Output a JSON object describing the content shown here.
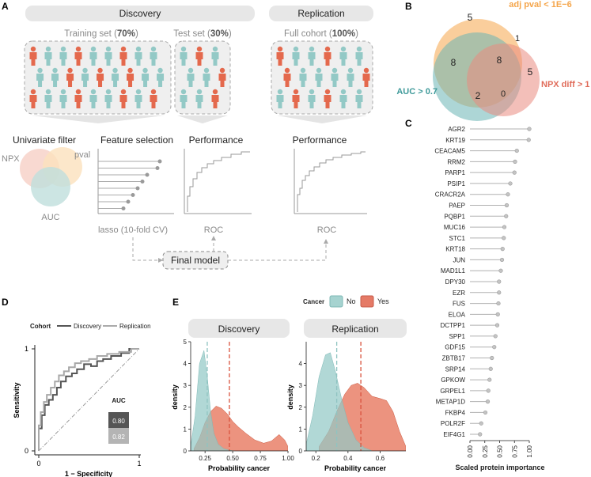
{
  "panels": {
    "a": "A",
    "b": "B",
    "c": "C",
    "d": "D",
    "e": "E"
  },
  "colors": {
    "orange": "#f5a54a",
    "teal": "#69b5b5",
    "red": "#e06c5a",
    "person_teal": "#93c9c6",
    "person_red": "#e4694d",
    "gray": "#9a9a9a",
    "header_fill": "#e7e7e7"
  },
  "panel_a": {
    "discovery_label": "Discovery",
    "replication_label": "Replication",
    "training_pre": "Training set (",
    "training_pct": "70%",
    "training_post": ")",
    "test_pre": "Test set (",
    "test_pct": "30%",
    "test_post": ")",
    "full_pre": "Full cohort (",
    "full_pct": "100%",
    "full_post": ")",
    "univariate_filter": "Univariate filter",
    "feature_selection": "Feature selection",
    "performance_1": "Performance",
    "performance_2": "Performance",
    "npx": "NPX",
    "pval": "pval",
    "auc": "AUC",
    "lasso": "lasso (10-fold CV)",
    "roc_1": "ROC",
    "roc_2": "ROC",
    "final_model": "Final model"
  },
  "panel_b": {
    "sets": [
      "adj pval < 1E−6",
      "AUC > 0.7",
      "NPX diff > 1"
    ],
    "counts": {
      "pval_only": "5",
      "pval_npx": "1",
      "pval_auc": "8",
      "all_three": "8",
      "npx_only": "5",
      "auc_npx": "0",
      "auc_only": "2"
    }
  },
  "panel_c": {
    "chart_data": {
      "type": "lollipop",
      "categories": [
        "AGR2",
        "KRT19",
        "CEACAM5",
        "RRM2",
        "PARP1",
        "PSIP1",
        "CRACR2A",
        "PAEP",
        "PQBP1",
        "MUC16",
        "STC1",
        "KRT18",
        "JUN",
        "MAD1L1",
        "DPY30",
        "EZR",
        "FUS",
        "ELOA",
        "DCTPP1",
        "SPP1",
        "GDF15",
        "ZBTB17",
        "SRP14",
        "GPKOW",
        "GRPEL1",
        "METAP1D",
        "FKBP4",
        "POLR2F",
        "EIF4G1"
      ],
      "values": [
        1.0,
        0.99,
        0.79,
        0.76,
        0.75,
        0.68,
        0.64,
        0.62,
        0.61,
        0.58,
        0.57,
        0.55,
        0.54,
        0.52,
        0.49,
        0.49,
        0.48,
        0.47,
        0.46,
        0.43,
        0.41,
        0.37,
        0.35,
        0.33,
        0.31,
        0.3,
        0.26,
        0.19,
        0.17
      ],
      "xlabel": "Scaled protein importance",
      "xticks": [
        "0.00",
        "0.25",
        "0.50",
        "0.75",
        "1.00"
      ],
      "xlim": [
        0,
        1
      ]
    }
  },
  "panel_d": {
    "legend_title": "Cohort",
    "series_names": [
      "Discovery",
      "Replication"
    ],
    "ylabel": "Sensitivity",
    "xlabel": "1 − Specificity",
    "tick_0": "0",
    "tick_1": "1",
    "auc_title": "AUC",
    "auc_values": [
      "0.80",
      "0.82"
    ],
    "chart_data": {
      "type": "line",
      "xlim": [
        0,
        1
      ],
      "ylim": [
        0,
        1
      ],
      "series": [
        {
          "name": "Discovery",
          "x": [
            0,
            0.0,
            0.03,
            0.03,
            0.06,
            0.06,
            0.1,
            0.1,
            0.14,
            0.14,
            0.18,
            0.18,
            0.22,
            0.22,
            0.27,
            0.27,
            0.33,
            0.33,
            0.38,
            0.38,
            0.45,
            0.45,
            0.52,
            0.52,
            0.58,
            0.58,
            0.64,
            0.64,
            0.72,
            0.72,
            0.82,
            0.82,
            0.9,
            0.9,
            1.0
          ],
          "y": [
            0,
            0.22,
            0.22,
            0.35,
            0.35,
            0.45,
            0.45,
            0.5,
            0.5,
            0.55,
            0.55,
            0.62,
            0.62,
            0.68,
            0.68,
            0.73,
            0.73,
            0.76,
            0.76,
            0.8,
            0.8,
            0.85,
            0.85,
            0.83,
            0.83,
            0.88,
            0.88,
            0.9,
            0.9,
            0.93,
            0.93,
            0.96,
            0.96,
            1.0,
            1.0
          ]
        },
        {
          "name": "Replication",
          "x": [
            0,
            0.0,
            0.02,
            0.02,
            0.05,
            0.05,
            0.08,
            0.08,
            0.12,
            0.12,
            0.16,
            0.16,
            0.2,
            0.2,
            0.25,
            0.25,
            0.3,
            0.3,
            0.36,
            0.36,
            0.42,
            0.42,
            0.5,
            0.5,
            0.58,
            0.58,
            0.68,
            0.68,
            0.8,
            0.8,
            0.92,
            0.92,
            1.0
          ],
          "y": [
            0,
            0.25,
            0.25,
            0.38,
            0.38,
            0.48,
            0.48,
            0.55,
            0.55,
            0.62,
            0.62,
            0.68,
            0.68,
            0.74,
            0.74,
            0.78,
            0.78,
            0.82,
            0.82,
            0.86,
            0.86,
            0.88,
            0.88,
            0.9,
            0.9,
            0.93,
            0.93,
            0.95,
            0.95,
            0.97,
            0.97,
            1.0,
            1.0
          ]
        }
      ]
    }
  },
  "panel_e": {
    "legend_title": "Cancer",
    "legend_no": "No",
    "legend_yes": "Yes",
    "discovery_title": "Discovery",
    "replication_title": "Replication",
    "ylabel": "density",
    "xlabel": "Probability cancer",
    "chart_data": [
      {
        "type": "area",
        "name": "Discovery",
        "xlim": [
          0.12,
          1.0
        ],
        "ylim": [
          0,
          5
        ],
        "xticks": [
          0.25,
          0.5,
          0.75,
          1.0
        ],
        "xticklabels": [
          "0.25",
          "0.50",
          "0.75",
          "1.00"
        ],
        "yticks": [
          0,
          1,
          2,
          3,
          4,
          5
        ],
        "yticklabels": [
          "0",
          "1",
          "2",
          "3",
          "4",
          "5"
        ],
        "series": [
          {
            "name": "No",
            "x": [
              0.12,
              0.16,
              0.2,
              0.24,
              0.27,
              0.3,
              0.33,
              0.37,
              0.42,
              0.47,
              0.52
            ],
            "y": [
              0.2,
              1.6,
              4.0,
              4.6,
              3.4,
              1.8,
              0.8,
              0.3,
              0.1,
              0.03,
              0.0
            ]
          },
          {
            "name": "Yes",
            "x": [
              0.15,
              0.2,
              0.25,
              0.3,
              0.35,
              0.4,
              0.45,
              0.5,
              0.55,
              0.62,
              0.7,
              0.78,
              0.85,
              0.92,
              0.97,
              1.0
            ],
            "y": [
              0.1,
              0.6,
              1.3,
              1.8,
              2.05,
              1.95,
              1.7,
              1.35,
              1.1,
              0.8,
              0.5,
              0.35,
              0.45,
              0.75,
              0.5,
              0.2
            ]
          }
        ],
        "vlines": [
          0.27,
          0.47
        ]
      },
      {
        "type": "area",
        "name": "Replication",
        "xlim": [
          0.14,
          0.76
        ],
        "ylim": [
          0,
          5
        ],
        "xticks": [
          0.2,
          0.4,
          0.6
        ],
        "xticklabels": [
          "0.2",
          "0.4",
          "0.6"
        ],
        "yticks": [
          0,
          1,
          2,
          3,
          4
        ],
        "yticklabels": [
          "0",
          "1",
          "2",
          "3",
          "4"
        ],
        "series": [
          {
            "name": "No",
            "x": [
              0.14,
              0.18,
              0.22,
              0.26,
              0.29,
              0.32,
              0.36,
              0.4,
              0.45,
              0.5,
              0.55
            ],
            "y": [
              0.3,
              1.6,
              3.4,
              4.4,
              4.5,
              3.7,
              2.4,
              1.3,
              0.5,
              0.15,
              0.0
            ]
          },
          {
            "name": "Yes",
            "x": [
              0.22,
              0.28,
              0.33,
              0.38,
              0.42,
              0.46,
              0.5,
              0.55,
              0.6,
              0.64,
              0.68,
              0.72,
              0.76
            ],
            "y": [
              0.2,
              0.9,
              1.8,
              2.6,
              3.0,
              3.1,
              2.9,
              2.5,
              2.4,
              2.3,
              1.8,
              0.9,
              0.2
            ]
          }
        ],
        "vlines": [
          0.33,
          0.48
        ]
      }
    ]
  }
}
